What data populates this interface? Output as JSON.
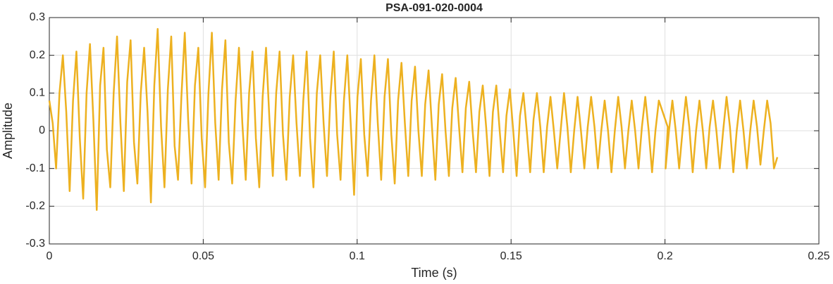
{
  "chart_data": {
    "type": "line",
    "title": "PSA-091-020-0004",
    "xlabel": "Time (s)",
    "ylabel": "Amplitude",
    "xlim": [
      0,
      0.25
    ],
    "xticks": [
      0,
      0.05,
      0.1,
      0.15,
      0.2,
      0.25
    ],
    "ylim": [
      -0.3,
      0.3
    ],
    "yticks": [
      -0.3,
      -0.2,
      -0.1,
      0,
      0.1,
      0.2,
      0.3
    ],
    "grid": true,
    "series": [
      {
        "color": "#EDB120",
        "x": [
          0,
          0.0011,
          0.0022,
          0.0033,
          0.0044,
          0.0055,
          0.0066,
          0.0077,
          0.0088,
          0.0099,
          0.011,
          0.0121,
          0.0132,
          0.0143,
          0.0154,
          0.0165,
          0.0176,
          0.0187,
          0.0198,
          0.0209,
          0.022,
          0.0231,
          0.0242,
          0.0253,
          0.0264,
          0.0275,
          0.0286,
          0.0297,
          0.0308,
          0.0319,
          0.033,
          0.0341,
          0.0352,
          0.0363,
          0.0374,
          0.0385,
          0.0396,
          0.0407,
          0.0418,
          0.0429,
          0.044,
          0.0451,
          0.0462,
          0.0473,
          0.0484,
          0.0495,
          0.0506,
          0.0517,
          0.0528,
          0.0539,
          0.055,
          0.0561,
          0.0572,
          0.0583,
          0.0594,
          0.0605,
          0.0616,
          0.0627,
          0.0638,
          0.0649,
          0.066,
          0.0671,
          0.0682,
          0.0693,
          0.0704,
          0.0715,
          0.0726,
          0.0737,
          0.0748,
          0.0759,
          0.077,
          0.0781,
          0.0792,
          0.0803,
          0.0814,
          0.0825,
          0.0836,
          0.0847,
          0.0858,
          0.0869,
          0.088,
          0.0891,
          0.0902,
          0.0913,
          0.0924,
          0.0935,
          0.0946,
          0.0957,
          0.0968,
          0.0979,
          0.099,
          0.1001,
          0.1012,
          0.1023,
          0.1034,
          0.1045,
          0.1056,
          0.1067,
          0.1078,
          0.1089,
          0.11,
          0.1111,
          0.1122,
          0.1133,
          0.1144,
          0.1155,
          0.1166,
          0.1177,
          0.1188,
          0.1199,
          0.121,
          0.1221,
          0.1232,
          0.1243,
          0.1254,
          0.1265,
          0.1276,
          0.1287,
          0.1298,
          0.1309,
          0.132,
          0.1331,
          0.1342,
          0.1353,
          0.1364,
          0.1375,
          0.1386,
          0.1397,
          0.1408,
          0.1419,
          0.143,
          0.1441,
          0.1452,
          0.1463,
          0.1474,
          0.1485,
          0.1496,
          0.1507,
          0.1518,
          0.1529,
          0.154,
          0.1551,
          0.1562,
          0.1573,
          0.1584,
          0.1595,
          0.1606,
          0.1617,
          0.1628,
          0.1639,
          0.165,
          0.1661,
          0.1672,
          0.1683,
          0.1694,
          0.1705,
          0.1716,
          0.1727,
          0.1738,
          0.1749,
          0.176,
          0.1771,
          0.1782,
          0.1793,
          0.1804,
          0.1815,
          0.1826,
          0.1837,
          0.1848,
          0.1859,
          0.187,
          0.1881,
          0.1892,
          0.1903,
          0.1914,
          0.1925,
          0.1936,
          0.1947,
          0.1958,
          0.1969,
          0.198,
          0.2009,
          0.2002,
          0.2013,
          0.2024,
          0.2035,
          0.2046,
          0.2057,
          0.2068,
          0.2079,
          0.209,
          0.2101,
          0.2112,
          0.2123,
          0.2134,
          0.2145,
          0.2156,
          0.2167,
          0.2178,
          0.2189,
          0.22,
          0.2211,
          0.2222,
          0.2233,
          0.2244,
          0.2255,
          0.2266,
          0.2277,
          0.2288,
          0.2299,
          0.231,
          0.2321,
          0.2332,
          0.2343,
          0.2354,
          0.2365
        ],
        "values": [
          0.08,
          0.02,
          -0.1,
          0.1,
          0.2,
          0.05,
          -0.16,
          0.08,
          0.21,
          -0.02,
          -0.18,
          0.1,
          0.23,
          0.03,
          -0.21,
          0.12,
          0.22,
          -0.05,
          -0.15,
          0.1,
          0.25,
          0.02,
          -0.16,
          0.13,
          0.24,
          -0.03,
          -0.14,
          0.1,
          0.22,
          0.05,
          -0.19,
          0.12,
          0.27,
          0.01,
          -0.15,
          0.11,
          0.25,
          -0.04,
          -0.13,
          0.09,
          0.26,
          0.03,
          -0.14,
          0.12,
          0.22,
          -0.02,
          -0.15,
          0.1,
          0.26,
          0.02,
          -0.13,
          0.11,
          0.24,
          -0.03,
          -0.14,
          0.08,
          0.22,
          0.02,
          -0.13,
          0.1,
          0.21,
          -0.02,
          -0.15,
          0.09,
          0.22,
          0.03,
          -0.12,
          0.1,
          0.21,
          -0.01,
          -0.13,
          0.09,
          0.2,
          0.02,
          -0.12,
          0.08,
          0.21,
          -0.02,
          -0.15,
          0.1,
          0.2,
          0.02,
          -0.12,
          0.09,
          0.21,
          -0.01,
          -0.13,
          0.08,
          0.2,
          0.02,
          -0.17,
          0.09,
          0.19,
          -0.01,
          -0.12,
          0.08,
          0.2,
          0.02,
          -0.13,
          0.09,
          0.19,
          -0.01,
          -0.14,
          0.08,
          0.18,
          0.02,
          -0.12,
          0.08,
          0.17,
          0,
          -0.12,
          0.07,
          0.16,
          0.01,
          -0.13,
          0.07,
          0.15,
          0,
          -0.12,
          0.06,
          0.14,
          0.01,
          -0.11,
          0.06,
          0.13,
          0,
          -0.11,
          0.05,
          0.12,
          0.01,
          -0.12,
          0.05,
          0.12,
          0,
          -0.11,
          0.04,
          0.11,
          0,
          -0.12,
          0.04,
          0.1,
          0,
          -0.11,
          0.03,
          0.1,
          0.01,
          -0.11,
          0.01,
          0.09,
          0,
          -0.1,
          0,
          0.1,
          0.01,
          -0.11,
          0,
          0.09,
          0,
          -0.1,
          0.01,
          0.09,
          0.01,
          -0.1,
          0,
          0.08,
          0,
          -0.11,
          0,
          0.09,
          0.01,
          -0.1,
          0,
          0.08,
          0,
          -0.1,
          0.01,
          0.09,
          0,
          -0.11,
          0,
          0.08,
          0.01,
          -0.1,
          0,
          0.08,
          0,
          -0.1,
          0,
          0.09,
          0.01,
          -0.11,
          0,
          0.08,
          0,
          -0.1,
          0.01,
          0.08,
          0,
          -0.1,
          0,
          0.09,
          0.01,
          -0.11,
          0,
          0.08,
          0,
          -0.1,
          0,
          0.08,
          0.01,
          -0.09,
          0,
          0.08,
          0.02,
          -0.1,
          -0.07
        ]
      }
    ]
  }
}
